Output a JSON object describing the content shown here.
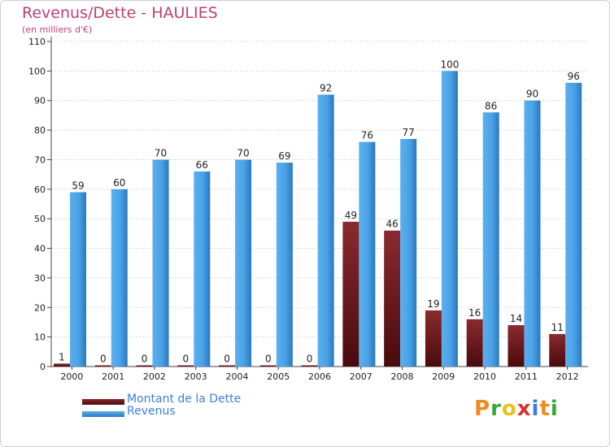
{
  "title": "Revenus/Dette - HAULIES",
  "subtitle": "(en milliers d'€)",
  "logo": "Proxiti",
  "colors": {
    "title": "#c0406f",
    "dette": "#7a1e22",
    "dette_dark": "#4a0a0d",
    "revenus": "#4aa2e6",
    "revenus_dark": "#2a78be",
    "legend_text": "#3f7fd9"
  },
  "chart_data": {
    "type": "bar",
    "title": "Revenus/Dette - HAULIES",
    "subtitle": "(en milliers d'€)",
    "categories": [
      "2000",
      "2001",
      "2002",
      "2003",
      "2004",
      "2005",
      "2006",
      "2007",
      "2008",
      "2009",
      "2010",
      "2011",
      "2012"
    ],
    "series": [
      {
        "name": "Montant de la Dette",
        "values": [
          1,
          0,
          0,
          0,
          0,
          0,
          0,
          49,
          46,
          19,
          16,
          14,
          11
        ]
      },
      {
        "name": "Revenus",
        "values": [
          59,
          60,
          70,
          66,
          70,
          69,
          92,
          76,
          77,
          100,
          86,
          90,
          96
        ]
      }
    ],
    "ylim": [
      0,
      110
    ],
    "yticks": [
      0,
      10,
      20,
      30,
      40,
      50,
      60,
      70,
      80,
      90,
      100,
      110
    ],
    "grid": true,
    "legend": "bottom-left"
  },
  "legend": {
    "items": [
      {
        "label": "Montant de la Dette"
      },
      {
        "label": "Revenus"
      }
    ]
  }
}
